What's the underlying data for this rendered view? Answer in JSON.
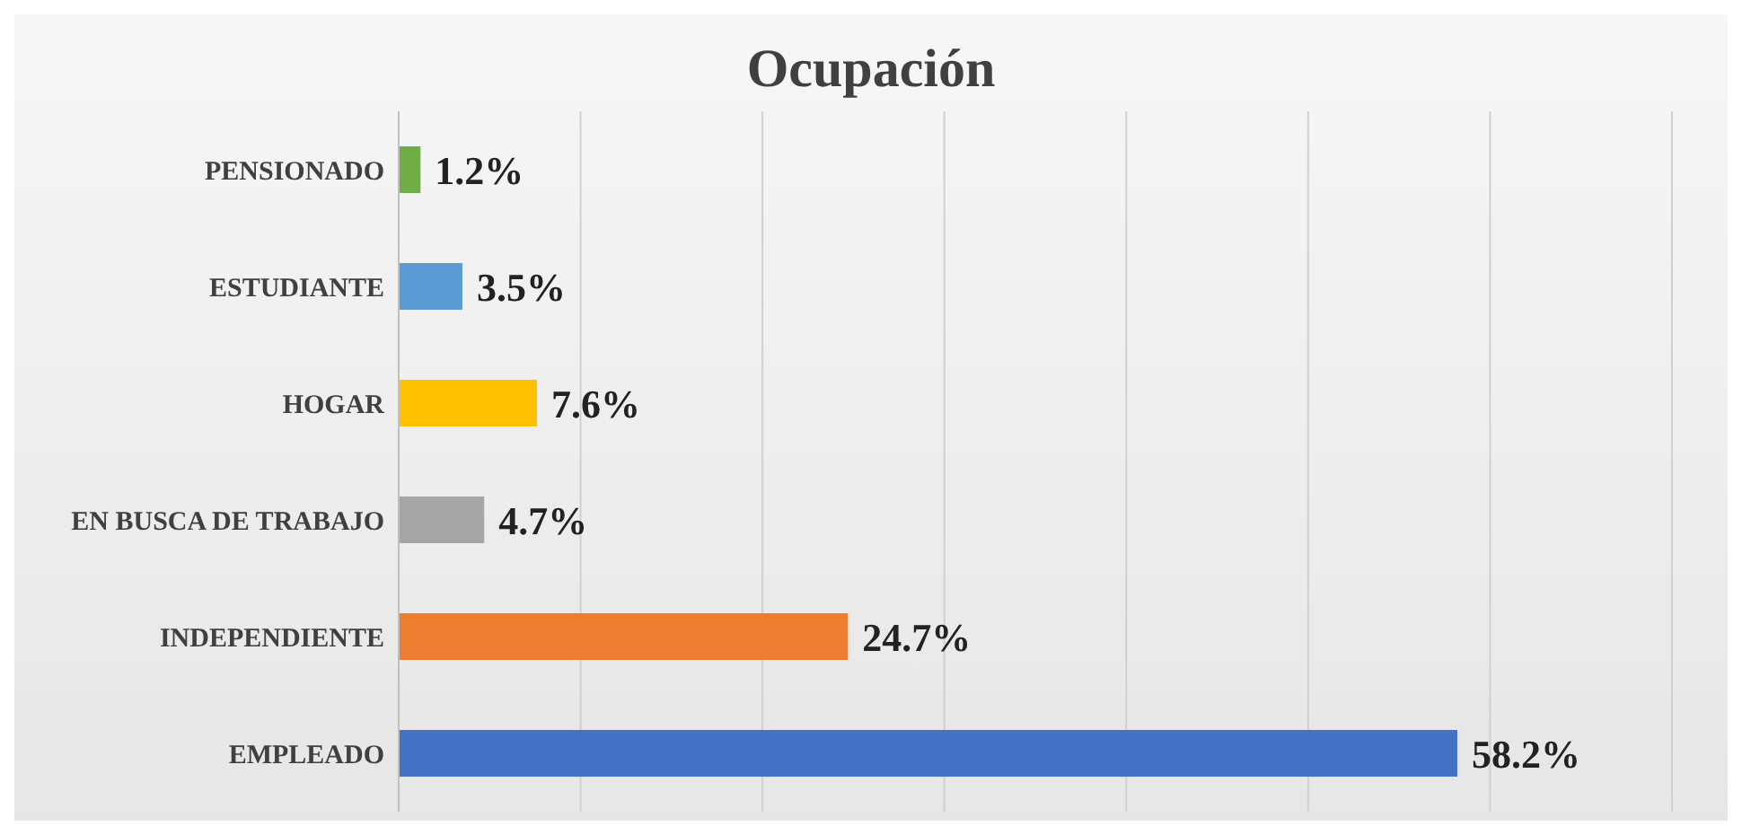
{
  "chart_data": {
    "type": "bar",
    "orientation": "horizontal",
    "title": "Ocupación",
    "categories": [
      "PENSIONADO",
      "ESTUDIANTE",
      "HOGAR",
      "EN BUSCA DE TRABAJO",
      "INDEPENDIENTE",
      "EMPLEADO"
    ],
    "values": [
      1.2,
      3.5,
      7.6,
      4.7,
      24.7,
      58.2
    ],
    "colors": [
      "#70ad47",
      "#5b9bd5",
      "#ffc000",
      "#a5a5a5",
      "#ed7d31",
      "#4472c4"
    ],
    "value_labels": [
      "1.2%",
      "3.5%",
      "7.6%",
      "4.7%",
      "24.7%",
      "58.2%"
    ],
    "xlim": [
      0,
      70
    ],
    "xticks": [
      {
        "value": 0,
        "label": null
      },
      {
        "value": 10,
        "label": null
      },
      {
        "value": 20,
        "label": null
      },
      {
        "value": 30,
        "label": null
      },
      {
        "value": 40,
        "label": null
      },
      {
        "value": 50,
        "label": null
      },
      {
        "value": 60,
        "label": null
      },
      {
        "value": 70,
        "label": null
      }
    ],
    "grid": "x",
    "tick_labels": "y",
    "legend": false
  }
}
